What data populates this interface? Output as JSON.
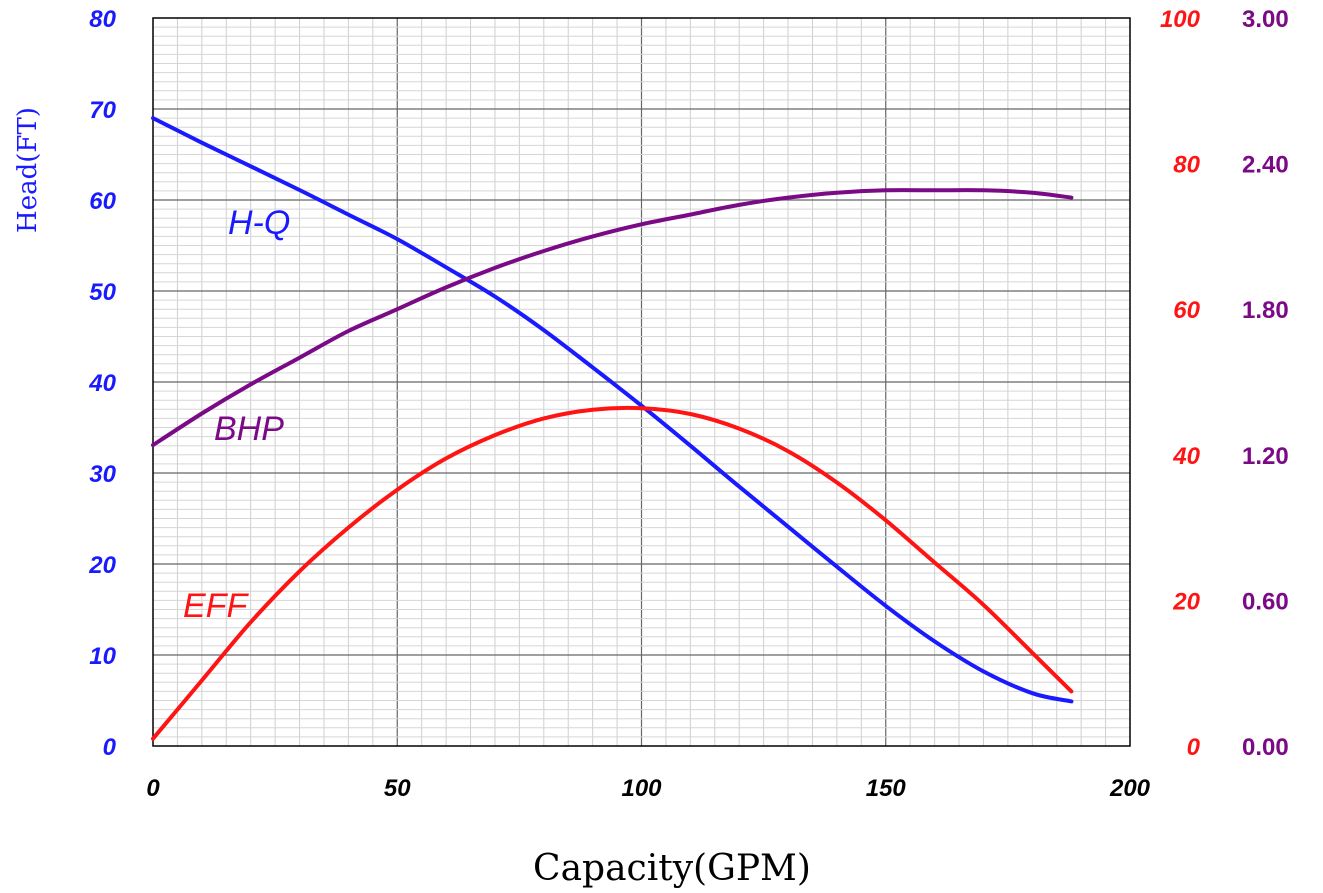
{
  "colors": {
    "hq": "#1a1aff",
    "bhp": "#7a0a85",
    "eff": "#ff1414",
    "left_axis": "#1a1aff",
    "right_axis_1": "#ff1414",
    "right_axis_2": "#7a0a85",
    "x_axis": "#000000"
  },
  "chart_data": {
    "type": "line",
    "xlabel": "Capacity(GPM)",
    "ylabel": "Head(FT)",
    "xlim": [
      0,
      200
    ],
    "ylim": [
      0,
      80
    ],
    "x_ticks": [
      "0",
      "50",
      "100",
      "150",
      "200"
    ],
    "y_ticks": [
      "0",
      "10",
      "20",
      "30",
      "40",
      "50",
      "60",
      "70",
      "80"
    ],
    "y2": {
      "ylim": [
        0,
        100
      ],
      "ticks": [
        "0",
        "20",
        "40",
        "60",
        "80",
        "100"
      ]
    },
    "y3": {
      "ylim": [
        0,
        3
      ],
      "ticks": [
        "0.00",
        "0.60",
        "1.20",
        "1.80",
        "2.40",
        "3.00"
      ]
    },
    "grid": true,
    "series": [
      {
        "name": "H-Q",
        "axis": "y",
        "x": [
          0,
          10,
          20,
          30,
          40,
          50,
          60,
          70,
          80,
          90,
          100,
          110,
          120,
          130,
          140,
          150,
          160,
          170,
          180,
          188
        ],
        "values": [
          69,
          66.3,
          63.7,
          61.1,
          58.4,
          55.7,
          52.6,
          49.4,
          45.7,
          41.6,
          37.4,
          33.0,
          28.5,
          24.1,
          19.7,
          15.4,
          11.5,
          8.2,
          5.8,
          4.9
        ]
      },
      {
        "name": "BHP",
        "axis": "y3",
        "x": [
          0,
          10,
          20,
          30,
          40,
          50,
          60,
          70,
          80,
          90,
          100,
          110,
          120,
          130,
          140,
          150,
          160,
          170,
          180,
          188
        ],
        "values": [
          1.24,
          1.37,
          1.49,
          1.6,
          1.71,
          1.8,
          1.89,
          1.97,
          2.04,
          2.1,
          2.15,
          2.19,
          2.23,
          2.26,
          2.28,
          2.29,
          2.29,
          2.29,
          2.28,
          2.26
        ]
      },
      {
        "name": "EFF",
        "axis": "y2",
        "x": [
          0,
          10,
          20,
          30,
          40,
          50,
          60,
          70,
          80,
          90,
          100,
          110,
          120,
          130,
          140,
          150,
          160,
          170,
          180,
          188
        ],
        "values": [
          1,
          9,
          17,
          24,
          30,
          35.2,
          39.5,
          42.7,
          45.0,
          46.2,
          46.4,
          45.6,
          43.6,
          40.5,
          36.2,
          31.0,
          25.2,
          19.4,
          12.8,
          7.5
        ]
      }
    ],
    "annotations": [
      "H-Q",
      "BHP",
      "EFF"
    ]
  }
}
